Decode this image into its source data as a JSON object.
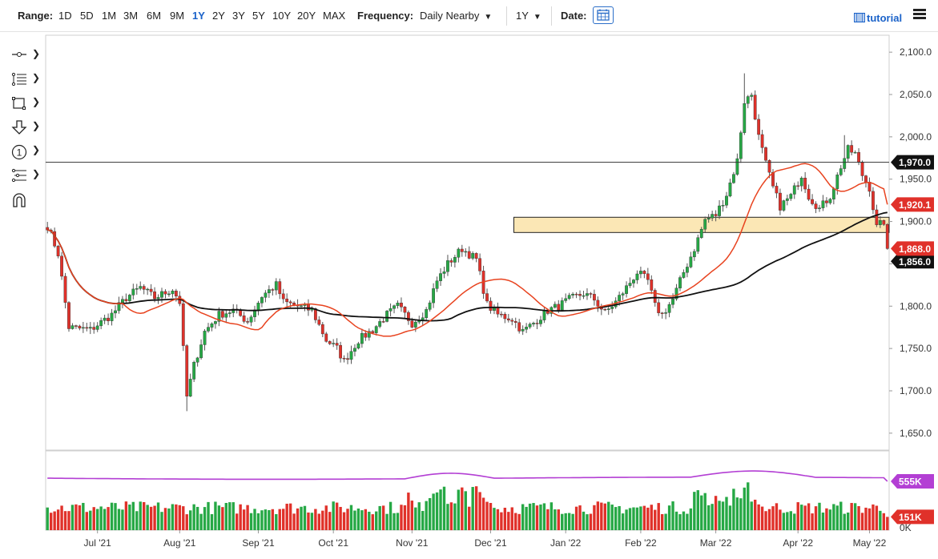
{
  "toolbar": {
    "range_label": "Range:",
    "ranges": [
      "1D",
      "5D",
      "1M",
      "3M",
      "6M",
      "9M",
      "1Y",
      "2Y",
      "3Y",
      "5Y",
      "10Y",
      "20Y",
      "MAX"
    ],
    "active_range": "1Y",
    "frequency_label": "Frequency:",
    "frequency_value": "Daily Nearby",
    "period_value": "1Y",
    "date_label": "Date:",
    "tutorial_label": "tutorial",
    "icons": {
      "date": "calendar-icon",
      "tutorial": "film-icon",
      "menu": "hamburger-menu-icon"
    }
  },
  "sidebar_tools": [
    {
      "name": "crosshair-line-tool",
      "glyph": "-o-"
    },
    {
      "name": "fibonacci-tool",
      "glyph": "⁝≡"
    },
    {
      "name": "rectangle-tool",
      "glyph": "□"
    },
    {
      "name": "arrow-down-tool",
      "glyph": "⇩"
    },
    {
      "name": "annotation-number-tool",
      "glyph": "1"
    },
    {
      "name": "pitchfork-tool",
      "glyph": "⋮≡"
    },
    {
      "name": "magnet-tool",
      "glyph": "∩"
    }
  ],
  "chart_data": {
    "type": "candlestick",
    "price_ylim": [
      1630,
      2120
    ],
    "price_ticks": [
      "2,100.0",
      "2,050.0",
      "2,000.0",
      "1,950.0",
      "1,900.0",
      "1,850.0",
      "1,800.0",
      "1,750.0",
      "1,700.0",
      "1,650.0"
    ],
    "price_tick_values": [
      2100,
      2050,
      2000,
      1950,
      1900,
      1850,
      1800,
      1750,
      1700,
      1650
    ],
    "x_tick_labels": [
      "Jul '21",
      "Aug '21",
      "Sep '21",
      "Oct '21",
      "Nov '21",
      "Dec '21",
      "Jan '22",
      "Feb '22",
      "Mar '22",
      "Apr '22",
      "May '22"
    ],
    "x_tick_index": [
      14,
      37,
      59,
      80,
      102,
      124,
      145,
      166,
      187,
      210,
      230
    ],
    "bar_count": 236,
    "horizontal_line": {
      "value": 1970,
      "label": "1,970.0"
    },
    "zone": {
      "low": 1887,
      "high": 1905,
      "start_index": 131
    },
    "last_price": {
      "value": 1868.0,
      "label": "1,868.0"
    },
    "ma_fast_last": {
      "value": 1920.1,
      "label": "1,920.1"
    },
    "ma_slow_last_label": "1,856.0",
    "anchors": [
      [
        0,
        1895
      ],
      [
        3,
        1862
      ],
      [
        6,
        1775
      ],
      [
        12,
        1772
      ],
      [
        18,
        1790
      ],
      [
        22,
        1810
      ],
      [
        26,
        1822
      ],
      [
        30,
        1810
      ],
      [
        35,
        1820
      ],
      [
        37,
        1805
      ],
      [
        39,
        1693
      ],
      [
        41,
        1730
      ],
      [
        44,
        1770
      ],
      [
        48,
        1790
      ],
      [
        52,
        1795
      ],
      [
        56,
        1782
      ],
      [
        60,
        1812
      ],
      [
        64,
        1825
      ],
      [
        66,
        1805
      ],
      [
        70,
        1800
      ],
      [
        74,
        1795
      ],
      [
        78,
        1760
      ],
      [
        81,
        1750
      ],
      [
        83,
        1735
      ],
      [
        87,
        1760
      ],
      [
        91,
        1772
      ],
      [
        95,
        1790
      ],
      [
        98,
        1800
      ],
      [
        102,
        1780
      ],
      [
        106,
        1795
      ],
      [
        109,
        1830
      ],
      [
        112,
        1850
      ],
      [
        116,
        1868
      ],
      [
        120,
        1855
      ],
      [
        123,
        1802
      ],
      [
        126,
        1790
      ],
      [
        130,
        1785
      ],
      [
        133,
        1770
      ],
      [
        136,
        1780
      ],
      [
        140,
        1795
      ],
      [
        143,
        1800
      ],
      [
        146,
        1808
      ],
      [
        150,
        1815
      ],
      [
        153,
        1808
      ],
      [
        156,
        1792
      ],
      [
        159,
        1805
      ],
      [
        162,
        1822
      ],
      [
        165,
        1840
      ],
      [
        168,
        1830
      ],
      [
        170,
        1800
      ],
      [
        172,
        1790
      ],
      [
        175,
        1808
      ],
      [
        178,
        1840
      ],
      [
        181,
        1868
      ],
      [
        184,
        1902
      ],
      [
        187,
        1908
      ],
      [
        190,
        1932
      ],
      [
        193,
        1972
      ],
      [
        195,
        2042
      ],
      [
        197,
        2050
      ],
      [
        199,
        2000
      ],
      [
        201,
        1968
      ],
      [
        203,
        1940
      ],
      [
        205,
        1918
      ],
      [
        208,
        1930
      ],
      [
        211,
        1955
      ],
      [
        213,
        1930
      ],
      [
        216,
        1915
      ],
      [
        219,
        1930
      ],
      [
        222,
        1965
      ],
      [
        224,
        1985
      ],
      [
        226,
        1980
      ],
      [
        228,
        1955
      ],
      [
        230,
        1940
      ],
      [
        232,
        1893
      ],
      [
        234,
        1900
      ],
      [
        235,
        1868
      ]
    ],
    "volume": {
      "ylim": [
        0,
        900000
      ],
      "oi_label": "555K",
      "volume_last_label": "151K",
      "zero_label": "0K"
    },
    "colors": {
      "up": "#26a845",
      "down": "#e0312a",
      "ma_fast": "#e8431f",
      "ma_slow": "#111111",
      "open_interest": "#b33fd4",
      "zone_fill": "#fbe7b5",
      "zone_stroke": "#222222",
      "price_box": "#e0312a",
      "level_box": "#111111",
      "oi_box": "#b33fd4"
    }
  }
}
